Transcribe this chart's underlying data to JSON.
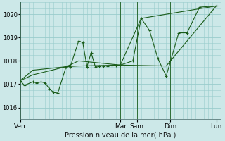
{
  "bg_color": "#cce8e8",
  "grid_color": "#99cccc",
  "line_color": "#1a5c1a",
  "title": "Pression niveau de la mer( hPa )",
  "ylim": [
    1015.5,
    1020.5
  ],
  "yticks": [
    1016,
    1017,
    1018,
    1019,
    1020
  ],
  "day_labels": [
    "Ven",
    "Mar",
    "Sam",
    "Dim",
    "Lun"
  ],
  "day_x": [
    0,
    24,
    28,
    36,
    47
  ],
  "xlim": [
    0,
    48
  ],
  "series_detailed": [
    [
      0,
      1017.15
    ],
    [
      1,
      1016.95
    ],
    [
      3,
      1017.1
    ],
    [
      4,
      1017.05
    ],
    [
      5,
      1017.1
    ],
    [
      6,
      1017.05
    ],
    [
      7,
      1016.8
    ],
    [
      8,
      1016.65
    ],
    [
      9,
      1016.62
    ],
    [
      11,
      1017.75
    ],
    [
      12,
      1017.75
    ],
    [
      13,
      1018.3
    ],
    [
      14,
      1018.85
    ],
    [
      15,
      1018.78
    ],
    [
      16,
      1017.75
    ],
    [
      17,
      1018.35
    ],
    [
      18,
      1017.75
    ],
    [
      19,
      1017.78
    ],
    [
      20,
      1017.78
    ],
    [
      21,
      1017.78
    ],
    [
      22,
      1017.8
    ],
    [
      23,
      1017.8
    ],
    [
      24,
      1017.82
    ],
    [
      27,
      1018.0
    ],
    [
      29,
      1019.82
    ],
    [
      31,
      1019.3
    ],
    [
      33,
      1018.1
    ],
    [
      35,
      1017.35
    ],
    [
      38,
      1019.2
    ],
    [
      40,
      1019.2
    ],
    [
      43,
      1020.3
    ],
    [
      47,
      1020.35
    ]
  ],
  "series_upper": [
    [
      0,
      1017.15
    ],
    [
      3,
      1017.6
    ],
    [
      11,
      1017.75
    ],
    [
      14,
      1018.0
    ],
    [
      24,
      1017.82
    ],
    [
      29,
      1019.82
    ],
    [
      47,
      1020.35
    ]
  ],
  "series_lower": [
    [
      0,
      1017.15
    ],
    [
      3,
      1017.4
    ],
    [
      11,
      1017.75
    ],
    [
      14,
      1017.78
    ],
    [
      24,
      1017.82
    ],
    [
      35,
      1017.78
    ],
    [
      47,
      1020.35
    ]
  ]
}
